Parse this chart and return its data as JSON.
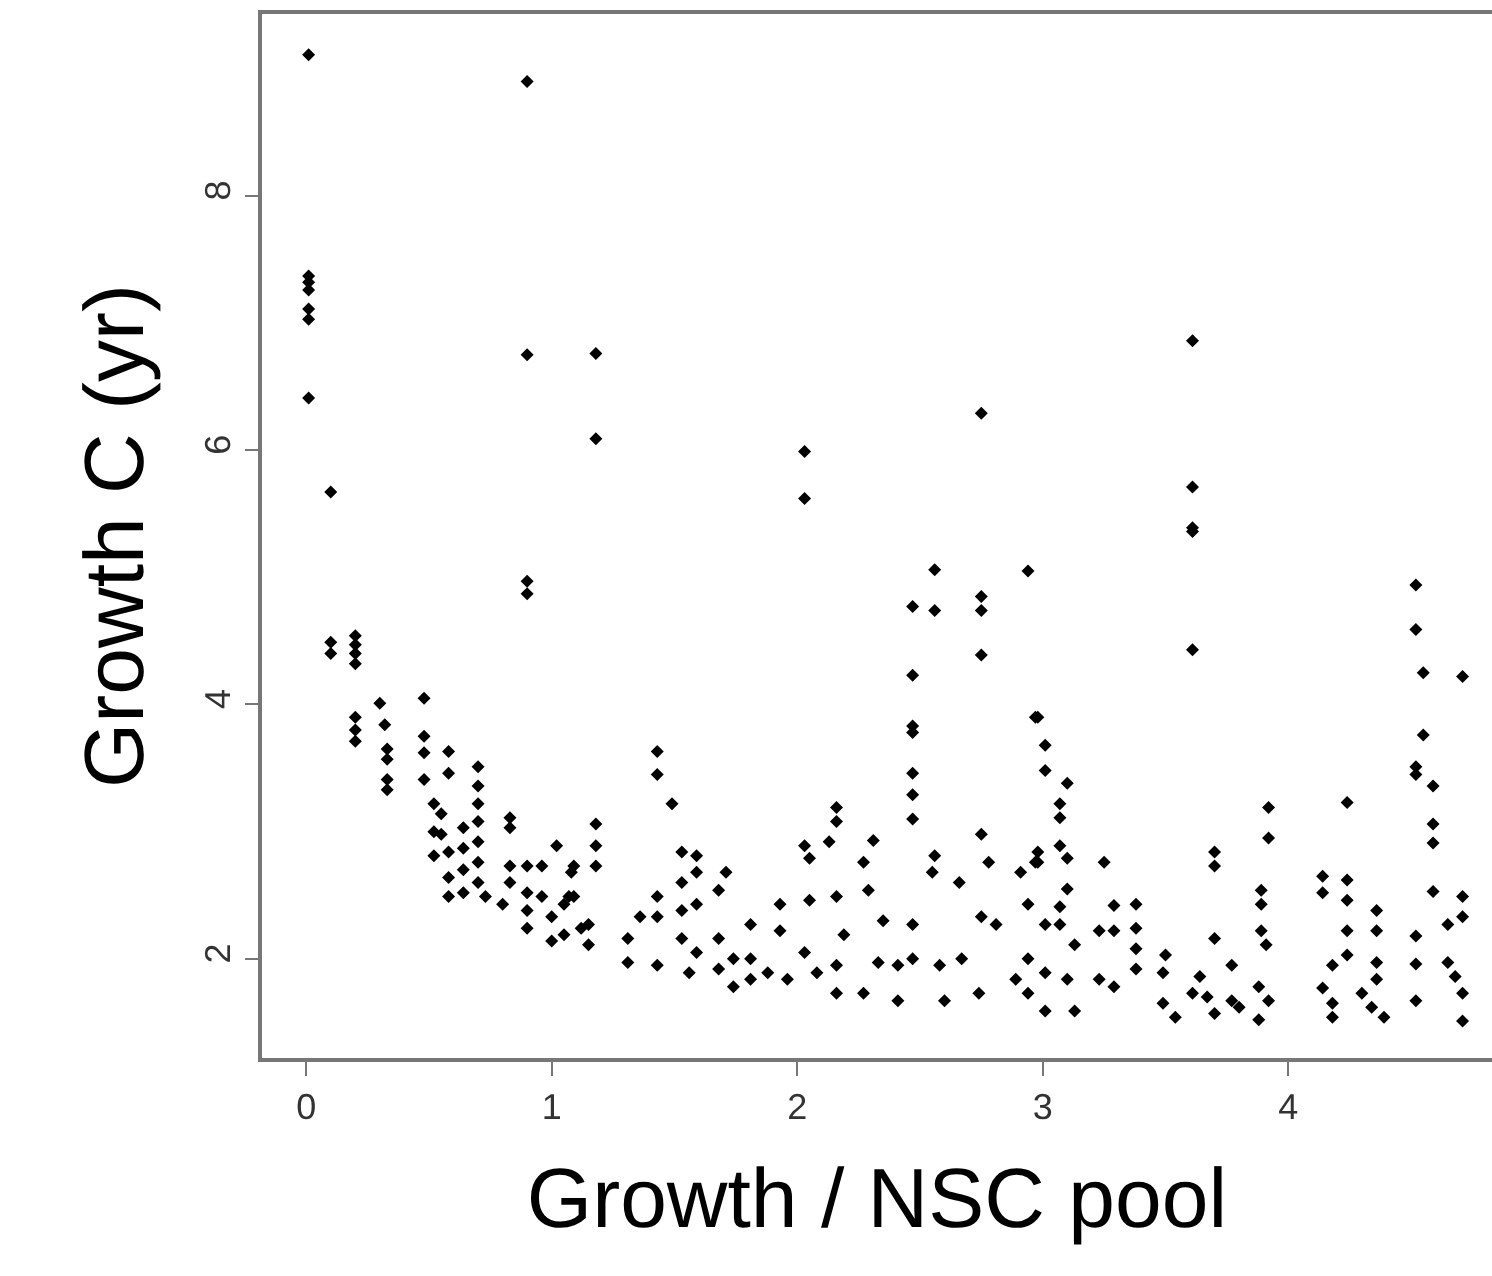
{
  "chart_data": {
    "type": "scatter",
    "xlabel": "Growth / NSC pool",
    "ylabel": "Growth C (yr)",
    "xlim": [
      -0.18,
      4.83
    ],
    "ylim": [
      1.22,
      9.43
    ],
    "xticks": [
      0,
      1,
      2,
      3,
      4
    ],
    "yticks": [
      2,
      4,
      6,
      8
    ],
    "marker": "diamond",
    "series": [
      {
        "color": "#000000",
        "x": [
          0.01,
          0.01,
          0.01,
          0.01,
          0.01,
          0.01,
          0.01,
          0.1,
          0.1,
          0.1,
          0.2,
          0.2,
          0.2,
          0.2,
          0.2,
          0.2,
          0.2,
          0.3,
          0.32,
          0.33,
          0.33,
          0.33,
          0.33,
          0.48,
          0.48,
          0.48,
          0.48,
          0.52,
          0.52,
          0.52,
          0.58,
          0.58,
          0.55,
          0.55,
          0.58,
          0.58,
          0.58,
          0.64,
          0.64,
          0.64,
          0.64,
          0.7,
          0.7,
          0.7,
          0.7,
          0.7,
          0.7,
          0.7,
          0.73,
          0.83,
          0.83,
          0.83,
          0.83,
          0.8,
          0.9,
          0.9,
          0.9,
          0.9,
          0.9,
          0.9,
          0.9,
          0.9,
          0.96,
          0.96,
          1.0,
          1.0,
          1.02,
          1.05,
          1.05,
          1.09,
          1.09,
          1.12,
          1.18,
          1.18,
          1.18,
          1.18,
          1.18,
          1.15,
          1.15,
          1.08,
          1.07,
          1.43,
          1.43,
          1.49,
          1.43,
          1.43,
          1.43,
          1.31,
          1.31,
          1.36,
          1.53,
          1.53,
          1.53,
          1.53,
          1.56,
          1.59,
          1.59,
          1.59,
          1.59,
          1.71,
          1.68,
          1.68,
          1.68,
          1.74,
          1.74,
          1.81,
          1.81,
          1.81,
          1.88,
          1.93,
          1.93,
          1.96,
          2.03,
          2.03,
          2.03,
          2.05,
          2.05,
          2.03,
          2.08,
          2.16,
          2.16,
          2.13,
          2.16,
          2.19,
          2.16,
          2.16,
          2.27,
          2.29,
          2.31,
          2.27,
          2.33,
          2.35,
          2.41,
          2.41,
          2.47,
          2.47,
          2.47,
          2.47,
          2.47,
          2.47,
          2.47,
          2.47,
          2.47,
          2.56,
          2.56,
          2.56,
          2.55,
          2.58,
          2.6,
          2.66,
          2.67,
          2.75,
          2.75,
          2.75,
          2.75,
          2.75,
          2.78,
          2.75,
          2.74,
          2.81,
          2.91,
          2.89,
          2.94,
          2.97,
          2.97,
          2.98,
          3.01,
          3.01,
          2.98,
          2.98,
          2.94,
          3.01,
          2.94,
          3.01,
          3.01,
          2.94,
          3.1,
          3.07,
          3.07,
          3.07,
          3.1,
          3.1,
          3.07,
          3.07,
          3.13,
          3.1,
          3.13,
          3.25,
          3.23,
          3.29,
          3.29,
          3.23,
          3.29,
          3.38,
          3.38,
          3.38,
          3.38,
          3.5,
          3.49,
          3.49,
          3.54,
          3.61,
          3.61,
          3.61,
          3.61,
          3.61,
          3.61,
          3.64,
          3.67,
          3.7,
          3.7,
          3.7,
          3.7,
          3.77,
          3.77,
          3.8,
          3.89,
          3.89,
          3.89,
          3.91,
          3.92,
          3.92,
          3.88,
          3.92,
          3.88,
          4.14,
          4.14,
          4.14,
          4.18,
          4.18,
          4.18,
          4.24,
          4.24,
          4.24,
          4.24,
          4.24,
          4.3,
          4.36,
          4.36,
          4.36,
          4.36,
          4.39,
          4.34,
          4.52,
          4.52,
          4.55,
          4.55,
          4.52,
          4.52,
          4.59,
          4.59,
          4.59,
          4.59,
          4.52,
          4.52,
          4.52,
          4.71,
          4.71,
          4.71,
          4.65,
          4.65,
          4.68,
          4.71,
          4.71
        ],
        "values": [
          9.11,
          7.37,
          7.32,
          7.26,
          7.11,
          7.03,
          6.41,
          5.67,
          4.49,
          4.4,
          4.54,
          4.47,
          4.4,
          4.32,
          3.9,
          3.8,
          3.71,
          4.01,
          3.84,
          3.65,
          3.57,
          3.41,
          3.33,
          4.05,
          3.75,
          3.62,
          3.41,
          3.22,
          3.0,
          2.81,
          3.63,
          3.46,
          3.14,
          2.98,
          2.84,
          2.64,
          2.49,
          3.03,
          2.87,
          2.7,
          2.52,
          3.51,
          3.36,
          3.22,
          3.08,
          2.92,
          2.76,
          2.6,
          2.49,
          3.11,
          3.03,
          2.73,
          2.6,
          2.43,
          8.9,
          6.75,
          4.97,
          4.87,
          2.73,
          2.52,
          2.38,
          2.24,
          2.73,
          2.49,
          2.33,
          2.14,
          2.89,
          2.19,
          2.43,
          2.73,
          2.49,
          2.24,
          6.76,
          6.09,
          3.06,
          2.89,
          2.73,
          2.27,
          2.11,
          2.68,
          2.49,
          3.63,
          3.45,
          3.22,
          2.49,
          2.33,
          1.95,
          2.16,
          1.97,
          2.33,
          2.84,
          2.6,
          2.38,
          2.16,
          1.89,
          2.81,
          2.68,
          2.43,
          2.05,
          2.68,
          2.54,
          2.16,
          1.92,
          2.0,
          1.78,
          2.27,
          2.0,
          1.84,
          1.89,
          2.43,
          2.22,
          1.84,
          5.99,
          5.62,
          2.89,
          2.79,
          2.46,
          2.05,
          1.89,
          3.19,
          3.08,
          2.92,
          2.49,
          2.19,
          1.95,
          1.73,
          2.76,
          2.54,
          2.93,
          1.73,
          1.97,
          2.3,
          1.67,
          1.95,
          4.77,
          4.23,
          3.83,
          3.78,
          3.46,
          3.29,
          3.1,
          2.27,
          2.0,
          5.06,
          4.74,
          2.81,
          2.68,
          1.95,
          1.67,
          2.6,
          2.0,
          6.29,
          4.85,
          4.74,
          4.39,
          2.98,
          2.76,
          2.33,
          1.73,
          2.27,
          2.68,
          1.84,
          5.05,
          3.9,
          2.76,
          3.9,
          3.68,
          3.48,
          2.84,
          2.76,
          2.43,
          2.27,
          2.0,
          1.89,
          1.59,
          1.73,
          3.38,
          3.22,
          3.11,
          2.89,
          2.79,
          2.55,
          2.41,
          2.27,
          2.11,
          1.84,
          1.59,
          2.76,
          2.22,
          2.42,
          2.22,
          1.84,
          1.78,
          2.43,
          2.24,
          2.08,
          1.92,
          2.03,
          1.89,
          1.65,
          1.54,
          6.86,
          5.71,
          5.39,
          5.36,
          4.43,
          1.73,
          1.86,
          1.7,
          2.84,
          2.73,
          2.16,
          1.57,
          1.95,
          1.67,
          1.62,
          2.54,
          2.43,
          2.22,
          2.11,
          3.19,
          2.95,
          1.78,
          1.67,
          1.52,
          2.65,
          2.52,
          1.77,
          1.65,
          1.54,
          1.95,
          3.23,
          2.62,
          2.46,
          2.22,
          2.03,
          1.73,
          2.38,
          2.22,
          1.97,
          1.84,
          1.54,
          1.62,
          4.94,
          4.59,
          4.25,
          3.76,
          3.51,
          3.45,
          3.36,
          3.06,
          2.91,
          2.53,
          2.18,
          1.96,
          1.67,
          4.22,
          2.49,
          2.33,
          2.27,
          1.97,
          1.86,
          1.73,
          1.51
        ]
      }
    ]
  }
}
